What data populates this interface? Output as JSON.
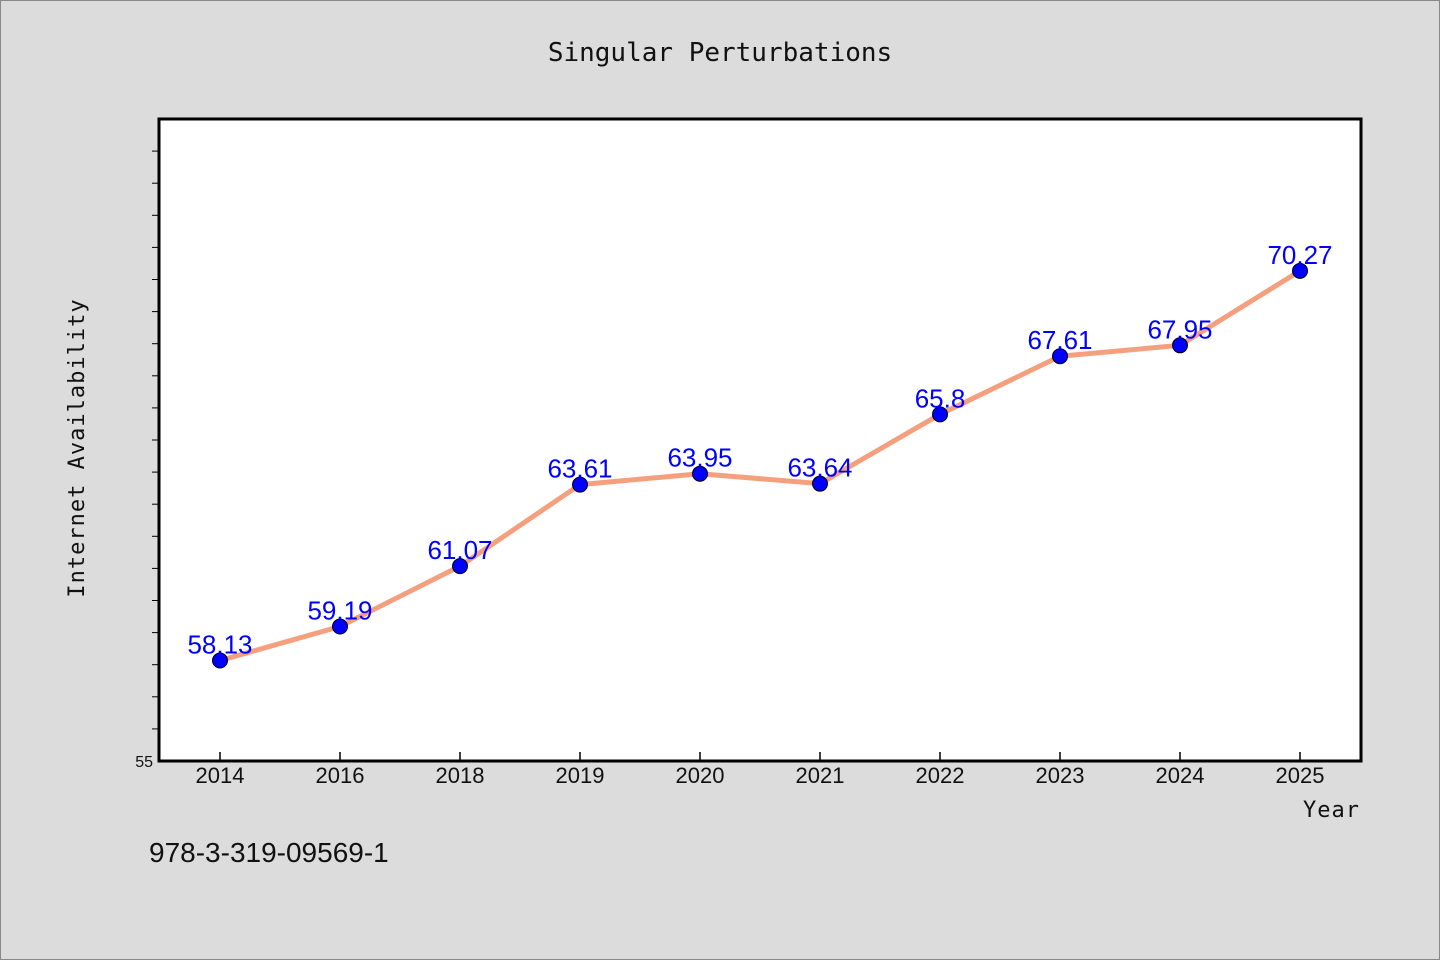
{
  "chart_data": {
    "type": "line",
    "title": "Singular Perturbations",
    "xlabel": "Year",
    "ylabel": "Internet Availability",
    "categories": [
      "2014",
      "2016",
      "2018",
      "2019",
      "2020",
      "2021",
      "2022",
      "2023",
      "2024",
      "2025"
    ],
    "series": [
      {
        "values": [
          58.13,
          59.19,
          61.07,
          63.61,
          63.95,
          63.64,
          65.8,
          67.61,
          67.95,
          70.27
        ],
        "data_labels": [
          "58.13",
          "59.19",
          "61.07",
          "63.61",
          "63.95",
          "63.64",
          "65.8",
          "67.61",
          "67.95",
          "70.27"
        ]
      }
    ],
    "ylim": [
      55,
      75
    ],
    "y_tick_labels": [
      "55"
    ],
    "grid": false,
    "line_color": "#f4a07e",
    "marker_color": "#0000ff",
    "label_color": "#0000ff",
    "plot_background": "#ffffff",
    "page_background": "#dcdcdc"
  },
  "footnote": "978-3-319-09569-1"
}
